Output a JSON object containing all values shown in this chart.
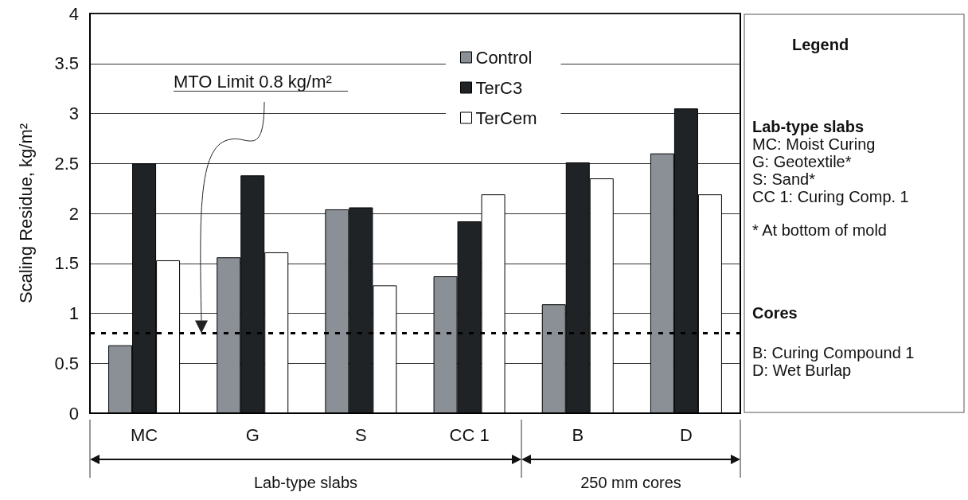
{
  "chart_data": {
    "type": "bar",
    "ylabel": "Scaling Residue, kg/m²",
    "categories": [
      "MC",
      "G",
      "S",
      "CC 1",
      "B",
      "D"
    ],
    "series": [
      {
        "name": "Control",
        "color": "#8a9096",
        "values": [
          0.68,
          1.56,
          2.04,
          1.37,
          1.09,
          2.6
        ]
      },
      {
        "name": "TerC3",
        "color": "#202325",
        "values": [
          2.5,
          2.38,
          2.06,
          1.92,
          2.51,
          3.05
        ]
      },
      {
        "name": "TerCem",
        "color": "#ffffff",
        "values": [
          1.53,
          1.61,
          1.28,
          2.19,
          2.35,
          2.19
        ]
      }
    ],
    "ylim": [
      0,
      4
    ],
    "yticks": [
      0,
      0.5,
      1,
      1.5,
      2,
      2.5,
      3,
      3.5,
      4
    ],
    "grid": "y",
    "legend": "top",
    "ref_lines": [
      {
        "axis": "y",
        "value": 0.8,
        "color": "#000000",
        "line_style": "dashed"
      }
    ],
    "annotations": [
      "MTO Limit 0.8 kg/m²",
      "Legend",
      "Lab-type slabs",
      "MC: Moist Curing",
      "G: Geotextile*",
      "S: Sand*",
      "CC 1: Curing Comp. 1",
      "* At bottom of mold",
      "Cores",
      "B: Curing Compound 1",
      "D: Wet Burlap",
      "Lab-type slabs",
      "250 mm cores"
    ]
  }
}
